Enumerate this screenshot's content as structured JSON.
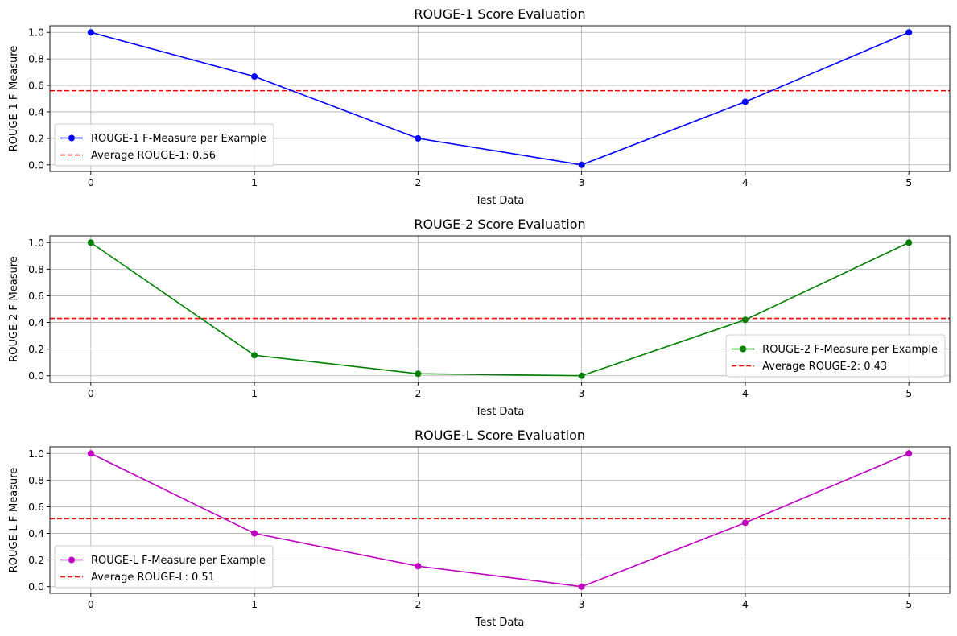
{
  "chart_data": [
    {
      "type": "line",
      "title": "ROUGE-1 Score Evaluation",
      "xlabel": "Test Data",
      "ylabel": "ROUGE-1 F-Measure",
      "x": [
        0,
        1,
        2,
        3,
        4,
        5
      ],
      "xlim": [
        -0.25,
        5.25
      ],
      "ylim": [
        -0.05,
        1.05
      ],
      "yticks": [
        "0.0",
        "0.2",
        "0.4",
        "0.6",
        "0.8",
        "1.0"
      ],
      "grid": true,
      "legend_position": "lower-left",
      "series": [
        {
          "name": "ROUGE-1 F-Measure per Example",
          "values": [
            1.0,
            0.667,
            0.2,
            0.0,
            0.476,
            1.0
          ],
          "color": "#0000ff",
          "style": "solid",
          "marker": "circle"
        }
      ],
      "reference_lines": [
        {
          "name": "Average ROUGE-1: 0.56",
          "value": 0.56,
          "color": "#ff0000",
          "style": "dashed"
        }
      ]
    },
    {
      "type": "line",
      "title": "ROUGE-2 Score Evaluation",
      "xlabel": "Test Data",
      "ylabel": "ROUGE-2 F-Measure",
      "x": [
        0,
        1,
        2,
        3,
        4,
        5
      ],
      "xlim": [
        -0.25,
        5.25
      ],
      "ylim": [
        -0.05,
        1.05
      ],
      "yticks": [
        "0.0",
        "0.2",
        "0.4",
        "0.6",
        "0.8",
        "1.0"
      ],
      "grid": true,
      "legend_position": "lower-right",
      "series": [
        {
          "name": "ROUGE-2 F-Measure per Example",
          "values": [
            1.0,
            0.154,
            0.015,
            0.0,
            0.42,
            1.0
          ],
          "color": "#008000",
          "style": "solid",
          "marker": "circle"
        }
      ],
      "reference_lines": [
        {
          "name": "Average ROUGE-2: 0.43",
          "value": 0.43,
          "color": "#ff0000",
          "style": "dashed"
        }
      ]
    },
    {
      "type": "line",
      "title": "ROUGE-L Score Evaluation",
      "xlabel": "Test Data",
      "ylabel": "ROUGE-L F-Measure",
      "x": [
        0,
        1,
        2,
        3,
        4,
        5
      ],
      "xlim": [
        -0.25,
        5.25
      ],
      "ylim": [
        -0.05,
        1.05
      ],
      "yticks": [
        "0.0",
        "0.2",
        "0.4",
        "0.6",
        "0.8",
        "1.0"
      ],
      "grid": true,
      "legend_position": "lower-left",
      "series": [
        {
          "name": "ROUGE-L F-Measure per Example",
          "values": [
            1.0,
            0.4,
            0.154,
            0.0,
            0.48,
            1.0
          ],
          "color": "#bf00bf",
          "style": "solid",
          "marker": "circle"
        }
      ],
      "reference_lines": [
        {
          "name": "Average ROUGE-L: 0.51",
          "value": 0.51,
          "color": "#ff0000",
          "style": "dashed"
        }
      ]
    }
  ]
}
